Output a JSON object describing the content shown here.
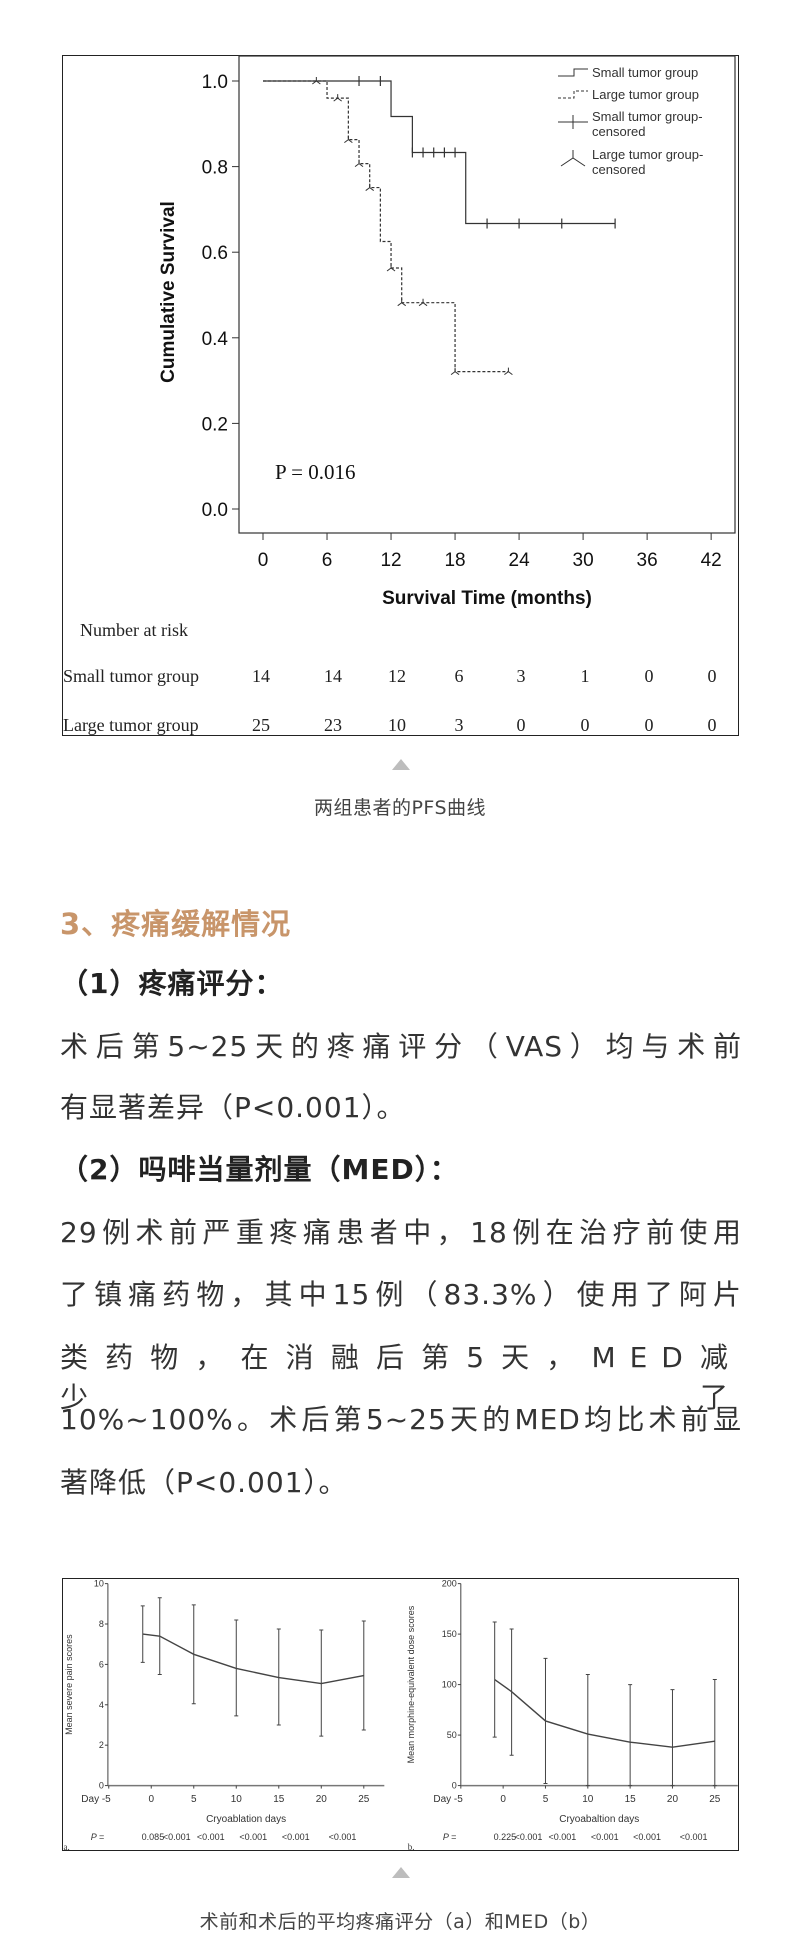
{
  "figure1": {
    "caption": "两组患者的PFS曲线",
    "chart_data": {
      "type": "line",
      "subtype": "kaplan-meier",
      "xlabel": "Survival Time (months)",
      "ylabel": "Cumulative Survival",
      "xticks": [
        0,
        6,
        12,
        18,
        24,
        30,
        36,
        42
      ],
      "yticks": [
        "0.0",
        "0.2",
        "0.4",
        "0.6",
        "0.8",
        "1.0"
      ],
      "xlim": [
        0,
        42
      ],
      "ylim": [
        0,
        1
      ],
      "annotation": "P = 0.016",
      "legend_position": "top-right",
      "legend": [
        "Small tumor group",
        "Large tumor group",
        "Small tumor group-censored",
        "Large tumor group-censored"
      ],
      "series": [
        {
          "name": "Small tumor group",
          "style": "solid",
          "steps": [
            [
              0,
              1.0
            ],
            [
              12,
              0.917
            ],
            [
              14,
              0.833
            ],
            [
              19,
              0.667
            ]
          ],
          "end": 33,
          "censored": [
            [
              9,
              1.0
            ],
            [
              11,
              1.0
            ],
            [
              14,
              0.833
            ],
            [
              15,
              0.833
            ],
            [
              16,
              0.833
            ],
            [
              17,
              0.833
            ],
            [
              18,
              0.833
            ],
            [
              21,
              0.667
            ],
            [
              24,
              0.667
            ],
            [
              28,
              0.667
            ],
            [
              33,
              0.667
            ]
          ]
        },
        {
          "name": "Large tumor group",
          "style": "dashed",
          "steps": [
            [
              0,
              1.0
            ],
            [
              6,
              0.96
            ],
            [
              8,
              0.863
            ],
            [
              9,
              0.807
            ],
            [
              10,
              0.751
            ],
            [
              11,
              0.625
            ],
            [
              12,
              0.563
            ],
            [
              13,
              0.482
            ],
            [
              18,
              0.321
            ]
          ],
          "end": 23,
          "censored": [
            [
              5,
              1.0
            ],
            [
              7,
              0.96
            ],
            [
              8,
              0.863
            ],
            [
              9,
              0.807
            ],
            [
              10,
              0.751
            ],
            [
              12,
              0.563
            ],
            [
              13,
              0.482
            ],
            [
              15,
              0.482
            ],
            [
              18,
              0.321
            ],
            [
              23,
              0.321
            ]
          ]
        }
      ],
      "risk_table": {
        "title": "Number at risk",
        "rows": [
          {
            "label": "Small tumor group",
            "values": [
              "14",
              "14",
              "12",
              "6",
              "3",
              "1",
              "0",
              "0"
            ]
          },
          {
            "label": "Large tumor group",
            "values": [
              "25",
              "23",
              "10",
              "3",
              "0",
              "0",
              "0",
              "0"
            ]
          }
        ]
      }
    }
  },
  "section": {
    "heading": "3、疼痛缓解情况",
    "sub1": "（1）疼痛评分：",
    "para1": [
      "术后第5~25天的疼痛评分（VAS）均与术前",
      "有显著差异（P<0.001）。"
    ],
    "sub2": "（2）吗啡当量剂量（MED）：",
    "para2": [
      "29例术前严重疼痛患者中，18例在治疗前使用",
      "了镇痛药物，其中15例（83.3%）使用了阿片",
      "类药物，在消融后第5天，MED减少了",
      "10%~100%。术后第5~25天的MED均比术前显",
      "著降低（P<0.001）。"
    ]
  },
  "figure2": {
    "caption": "术前和术后的平均疼痛评分（a）和MED（b）",
    "chart_data": [
      {
        "type": "line",
        "panel_label": "a.",
        "ylabel": "Mean severe pain scores",
        "xlabel": "Cryoablation days",
        "xtick_labels": [
          "Day -5",
          "0",
          "5",
          "10",
          "15",
          "20",
          "25"
        ],
        "yticks": [
          "0",
          "2",
          "4",
          "6",
          "8",
          "10"
        ],
        "ylim": [
          0,
          10
        ],
        "x": [
          -1,
          1,
          5,
          10,
          15,
          20,
          25
        ],
        "mean": [
          7.5,
          7.4,
          6.5,
          5.8,
          5.35,
          5.05,
          5.45
        ],
        "err_upper": [
          8.9,
          9.3,
          8.95,
          8.2,
          7.75,
          7.7,
          8.15
        ],
        "err_lower": [
          6.1,
          5.5,
          4.05,
          3.45,
          3.0,
          2.45,
          2.75
        ],
        "p_label": "P =",
        "p_values": [
          "0.085",
          "<0.001",
          "<0.001",
          "<0.001",
          "<0.001",
          "<0.001"
        ]
      },
      {
        "type": "line",
        "panel_label": "b.",
        "ylabel": "Mean morphine-equivalent dose scores",
        "xlabel": "Cryoabaltion days",
        "xtick_labels": [
          "Day -5",
          "0",
          "5",
          "10",
          "15",
          "20",
          "25"
        ],
        "yticks": [
          "0",
          "50",
          "100",
          "150",
          "200"
        ],
        "ylim": [
          0,
          200
        ],
        "x": [
          -1,
          1,
          5,
          10,
          15,
          20,
          25
        ],
        "mean": [
          105,
          93,
          64,
          51,
          43,
          38,
          44
        ],
        "err_upper": [
          162,
          155,
          126,
          110,
          100,
          95,
          105
        ],
        "err_lower": [
          48,
          30,
          2,
          0,
          0,
          0,
          0
        ],
        "p_label": "P =",
        "p_values": [
          "0.225",
          "<0.001",
          "<0.001",
          "<0.001",
          "<0.001",
          "<0.001"
        ]
      }
    ]
  }
}
